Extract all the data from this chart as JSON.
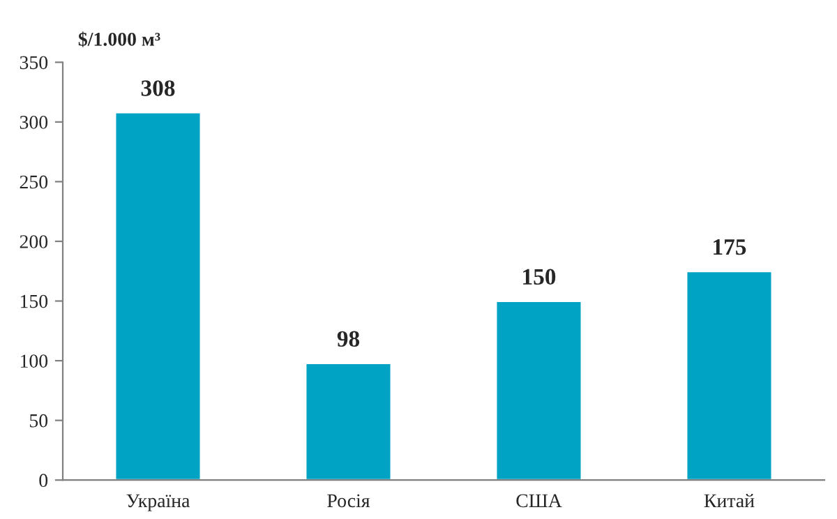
{
  "chart_data": {
    "type": "bar",
    "ylabel": "$/1.000 м³",
    "categories": [
      "Україна",
      "Росія",
      "США",
      "Китай"
    ],
    "values": [
      308,
      98,
      150,
      175
    ],
    "color": "#00a3c4",
    "ylim": [
      0,
      350
    ],
    "yticks": [
      0,
      50,
      100,
      150,
      200,
      250,
      300,
      350
    ],
    "data_labels": true,
    "grid": false,
    "legend": false
  }
}
